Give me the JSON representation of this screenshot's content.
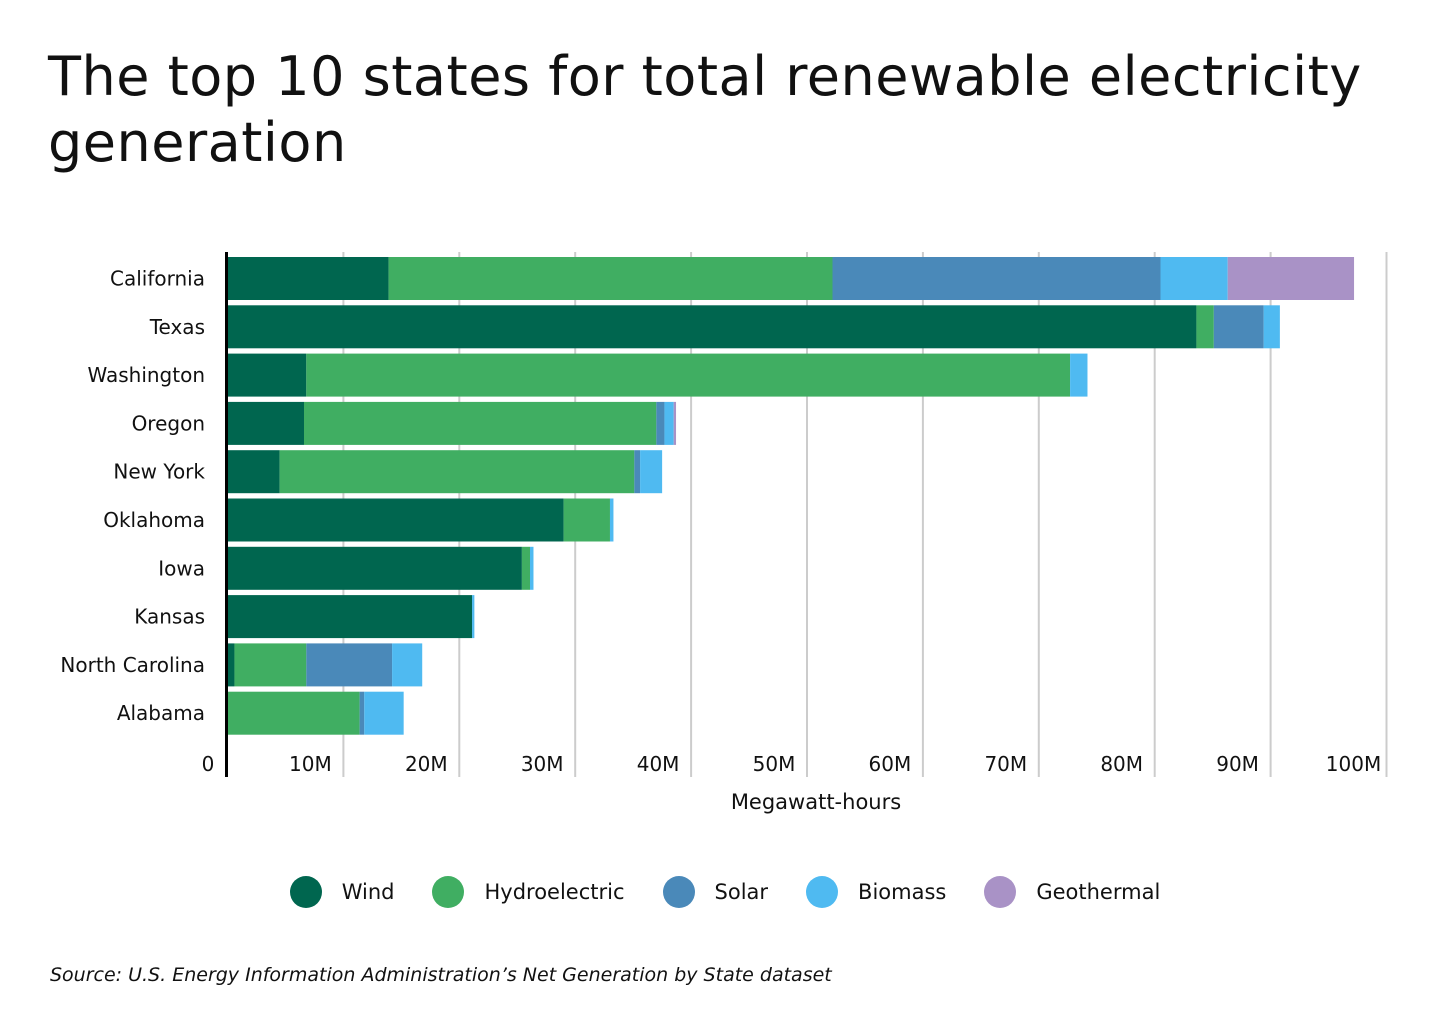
{
  "title": "The top 10 states for total renewable electricity generation",
  "source": "Source:  U.S. Energy Information Administration’s Net Generation by State dataset",
  "chart_data": {
    "type": "bar",
    "orientation": "horizontal",
    "stacked": true,
    "title": "The top 10 states for total renewable electricity generation",
    "xlabel": "Megawatt-hours",
    "ylabel": "",
    "xlim": [
      0,
      100
    ],
    "x_unit": "million MWh",
    "grid": true,
    "legend_position": "bottom",
    "x_ticks": [
      "0",
      "10M",
      "20M",
      "30M",
      "40M",
      "50M",
      "60M",
      "70M",
      "80M",
      "90M",
      "100M"
    ],
    "categories": [
      "California",
      "Texas",
      "Washington",
      "Oregon",
      "New York",
      "Oklahoma",
      "Iowa",
      "Kansas",
      "North Carolina",
      "Alabama"
    ],
    "series": [
      {
        "name": "Wind",
        "color": "#00664f",
        "values": [
          13.9,
          83.6,
          6.8,
          6.6,
          4.5,
          29.0,
          25.4,
          21.1,
          0.6,
          0
        ]
      },
      {
        "name": "Hydroelectric",
        "color": "#40ae62",
        "values": [
          38.3,
          1.5,
          65.9,
          30.4,
          30.6,
          4.0,
          0.7,
          0,
          6.2,
          11.4
        ]
      },
      {
        "name": "Solar",
        "color": "#4a89b9",
        "values": [
          28.3,
          4.3,
          0,
          0.7,
          0.5,
          0,
          0,
          0,
          7.4,
          0.4
        ]
      },
      {
        "name": "Biomass",
        "color": "#4fbaf1",
        "values": [
          5.8,
          1.4,
          1.5,
          0.8,
          1.9,
          0.3,
          0.3,
          0.2,
          2.6,
          3.4
        ]
      },
      {
        "name": "Geothermal",
        "color": "#a992c6",
        "values": [
          10.9,
          0,
          0,
          0.2,
          0,
          0,
          0,
          0,
          0,
          0
        ]
      }
    ]
  }
}
